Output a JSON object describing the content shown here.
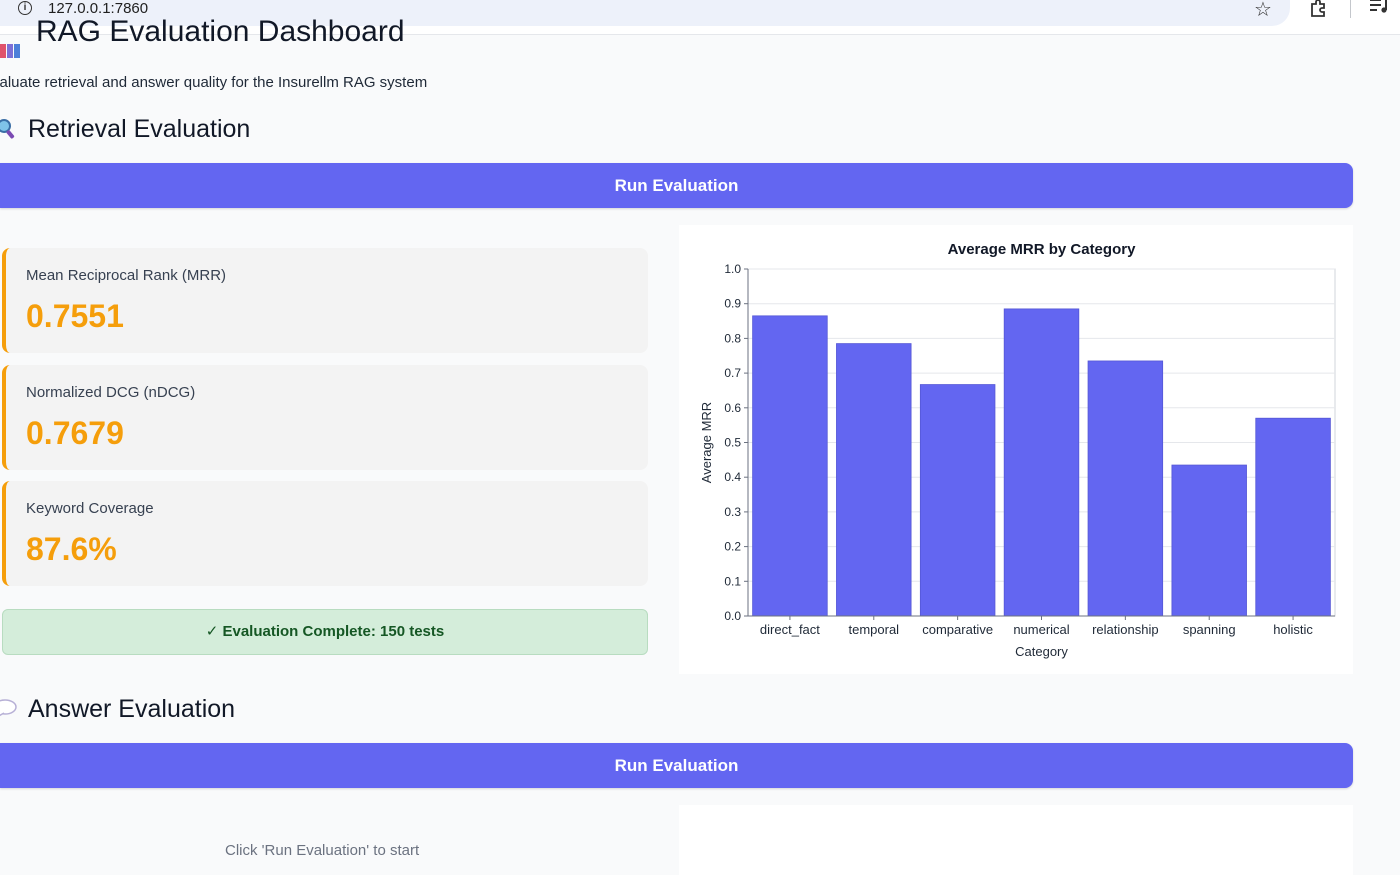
{
  "browser": {
    "url": "127.0.0.1:7860"
  },
  "page": {
    "title": "RAG Evaluation Dashboard",
    "subtitle": "valuate retrieval and answer quality for the Insurellm RAG system"
  },
  "retrieval": {
    "heading": "Retrieval Evaluation",
    "button_label": "Run Evaluation",
    "metrics": [
      {
        "label": "Mean Reciprocal Rank (MRR)",
        "value": "0.7551"
      },
      {
        "label": "Normalized DCG (nDCG)",
        "value": "0.7679"
      },
      {
        "label": "Keyword Coverage",
        "value": "87.6%"
      }
    ],
    "status": "✓ Evaluation Complete: 150 tests"
  },
  "answer": {
    "heading": "Answer Evaluation",
    "button_label": "Run Evaluation",
    "placeholder": "Click 'Run Evaluation' to start"
  },
  "colors": {
    "accent": "#6366f1",
    "metric": "#f59e0b",
    "success_bg": "#d4edda",
    "success_text": "#155724"
  },
  "chart_data": {
    "type": "bar",
    "title": "Average MRR by Category",
    "xlabel": "Category",
    "ylabel": "Average MRR",
    "categories": [
      "direct_fact",
      "temporal",
      "comparative",
      "numerical",
      "relationship",
      "spanning",
      "holistic"
    ],
    "values": [
      0.865,
      0.785,
      0.667,
      0.885,
      0.735,
      0.435,
      0.57
    ],
    "ylim": [
      0,
      1.0
    ],
    "yticks": [
      "0.0",
      "0.1",
      "0.2",
      "0.3",
      "0.4",
      "0.5",
      "0.6",
      "0.7",
      "0.8",
      "0.9",
      "1.0"
    ],
    "grid": true,
    "color": "#6366f1"
  }
}
